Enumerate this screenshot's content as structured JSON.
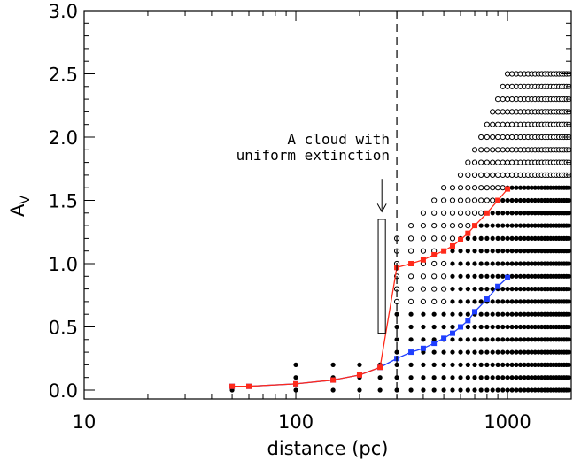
{
  "chart_data": {
    "type": "scatter",
    "title": "",
    "xlabel": "distance (pc)",
    "ylabel_main": "A",
    "ylabel_sub": "V",
    "xscale": "log",
    "xlim": [
      10,
      2000
    ],
    "ylim": [
      -0.07,
      3.0
    ],
    "xticks": [
      {
        "value": 10,
        "label": "10"
      },
      {
        "value": 100,
        "label": "100"
      },
      {
        "value": 1000,
        "label": "1000"
      }
    ],
    "yticks": [
      {
        "value": 0.0,
        "label": "0.0"
      },
      {
        "value": 0.5,
        "label": "0.5"
      },
      {
        "value": 1.0,
        "label": "1.0"
      },
      {
        "value": 1.5,
        "label": "1.5"
      },
      {
        "value": 2.0,
        "label": "2.0"
      },
      {
        "value": 2.5,
        "label": "2.5"
      },
      {
        "value": 3.0,
        "label": "3.0"
      }
    ],
    "series": [
      {
        "marker": "square",
        "color": "#1f3fff",
        "x": [
          50,
          60,
          100,
          150,
          200,
          250,
          300,
          350,
          400,
          450,
          500,
          550,
          600,
          650,
          700,
          800,
          900,
          1000
        ],
        "y": [
          0.03,
          0.03,
          0.05,
          0.08,
          0.12,
          0.18,
          0.25,
          0.3,
          0.33,
          0.37,
          0.41,
          0.45,
          0.5,
          0.55,
          0.62,
          0.72,
          0.82,
          0.89
        ]
      },
      {
        "marker": "square",
        "color": "#ff2a1a",
        "x": [
          50,
          60,
          100,
          150,
          200,
          250,
          300,
          350,
          400,
          450,
          500,
          550,
          600,
          650,
          700,
          800,
          900,
          1000
        ],
        "y": [
          0.03,
          0.03,
          0.05,
          0.08,
          0.12,
          0.18,
          0.97,
          1.0,
          1.03,
          1.07,
          1.1,
          1.14,
          1.19,
          1.24,
          1.3,
          1.4,
          1.5,
          1.59
        ]
      }
    ],
    "annotations": {
      "cloud_text_line1": "A cloud with",
      "cloud_text_line2": "uniform extinction",
      "cloud_box": {
        "x_range": [
          245,
          265
        ],
        "y_range": [
          0.45,
          1.35
        ]
      },
      "arrow": {
        "x": 255,
        "y_from": 1.67,
        "y_to": 1.41
      },
      "dashed_line_x": 300
    },
    "grid": {
      "x_start": 50,
      "x_step": 50,
      "x_end": 2000,
      "y_step": 0.1,
      "y_min": 0.0,
      "red_stop": 1.59,
      "envelope_x": [
        50,
        100,
        150,
        200,
        250,
        300,
        350,
        400,
        500,
        600,
        700,
        800,
        900,
        1000,
        2000
      ],
      "envelope_ymax": [
        0.07,
        0.2,
        0.2,
        0.27,
        0.27,
        1.2,
        1.3,
        1.4,
        1.6,
        1.75,
        1.95,
        2.1,
        2.3,
        2.5,
        2.5
      ]
    },
    "legend": "none"
  }
}
